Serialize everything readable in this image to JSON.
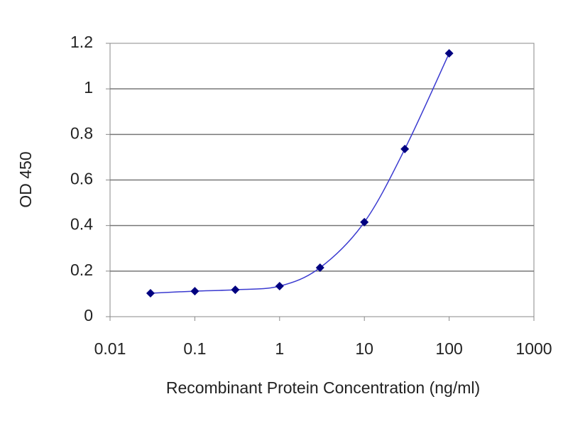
{
  "chart_data": {
    "type": "line",
    "xlabel": "Recombinant Protein Concentration (ng/ml)",
    "ylabel": "OD 450",
    "x": [
      0.03,
      0.1,
      0.3,
      1,
      3,
      10,
      30,
      100
    ],
    "values": [
      0.103,
      0.112,
      0.118,
      0.134,
      0.215,
      0.415,
      0.736,
      1.156
    ],
    "color": "#000080",
    "line_color": "#3a3ad0",
    "xscale": "log",
    "xlim": [
      0.01,
      1000
    ],
    "xticks": [
      0.01,
      0.1,
      1,
      10,
      100,
      1000
    ],
    "ylim": [
      0,
      1.2
    ],
    "yticks": [
      0,
      0.2,
      0.4,
      0.6,
      0.8,
      1,
      1.2
    ],
    "grid": true
  }
}
